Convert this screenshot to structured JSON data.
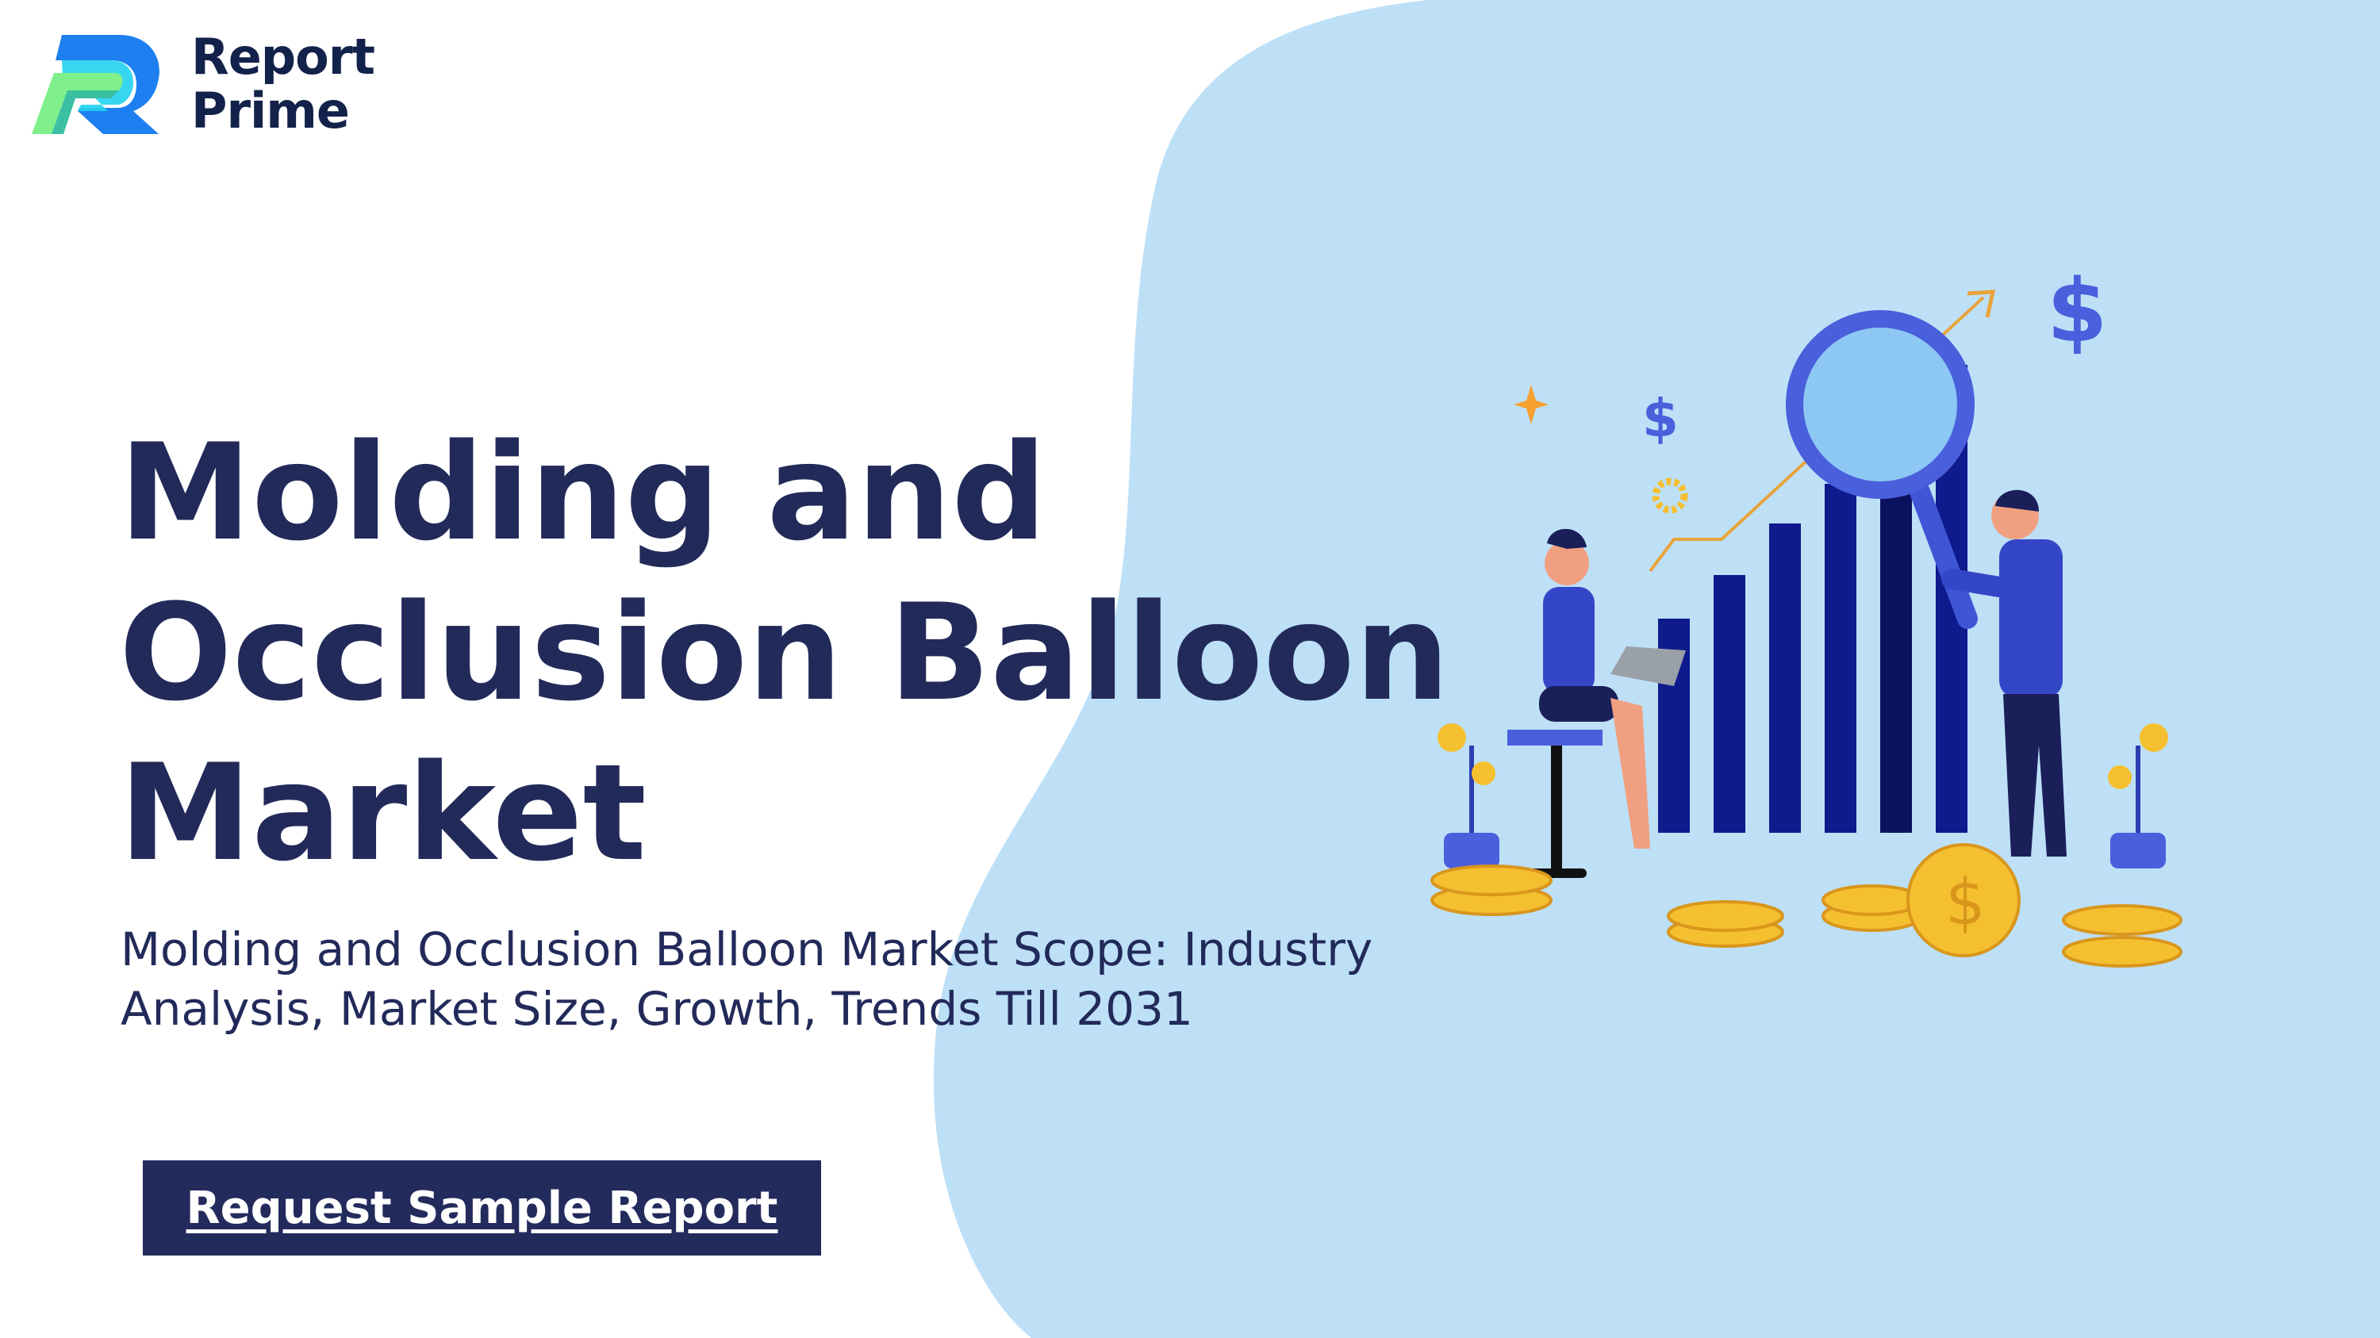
{
  "brand": {
    "name_line1": "Report",
    "name_line2": "Prime"
  },
  "hero": {
    "title": "Molding and\nOcclusion Balloon\nMarket",
    "subtitle": "Molding and Occlusion Balloon Market Scope: Industry Analysis, Market Size, Growth, Trends Till 2031",
    "cta_label": "Request Sample Report"
  },
  "colors": {
    "navy": "#222a5a",
    "blob": "#bde0f7",
    "accent_blue": "#1a27a8",
    "gold": "#f5c030"
  },
  "illustration": {
    "icons": [
      "dollar-sign-icon",
      "magnifier-icon",
      "bar-chart-icon",
      "coin-icon",
      "plant-icon",
      "gear-icon",
      "arrow-up-icon"
    ]
  }
}
